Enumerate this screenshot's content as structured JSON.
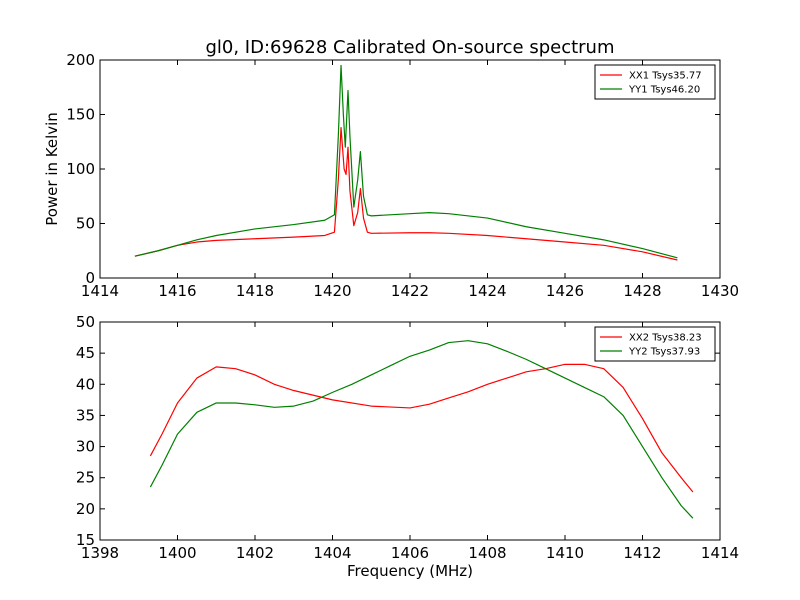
{
  "chart_data": [
    {
      "type": "line",
      "title": "gl0, ID:69628 Calibrated On-source spectrum",
      "xlabel": "",
      "ylabel": "Power in Kelvin",
      "xlim": [
        1414,
        1430
      ],
      "ylim": [
        0,
        200
      ],
      "xticks": [
        "1414",
        "1416",
        "1418",
        "1420",
        "1422",
        "1424",
        "1426",
        "1428",
        "1430"
      ],
      "yticks": [
        "0",
        "50",
        "100",
        "150",
        "200"
      ],
      "legend_position": "top-right",
      "series": [
        {
          "name": "XX1 Tsys35.77",
          "color": "#ff0000",
          "x": [
            1414.9,
            1415.5,
            1416.0,
            1416.5,
            1417.0,
            1418.0,
            1419.0,
            1419.8,
            1420.05,
            1420.15,
            1420.22,
            1420.3,
            1420.35,
            1420.4,
            1420.45,
            1420.55,
            1420.65,
            1420.72,
            1420.8,
            1420.9,
            1421.0,
            1422.0,
            1422.5,
            1423.0,
            1424.0,
            1425.0,
            1426.0,
            1427.0,
            1428.0,
            1428.9
          ],
          "y": [
            20,
            25,
            30,
            33,
            34.5,
            36,
            37.5,
            39,
            42,
            90,
            138,
            100,
            95,
            120,
            80,
            48,
            60,
            82,
            55,
            42,
            41,
            41.5,
            41.5,
            41,
            39,
            36,
            33,
            30,
            24,
            16.5
          ]
        },
        {
          "name": "YY1 Tsys46.20",
          "color": "#008000",
          "x": [
            1414.9,
            1415.5,
            1416.0,
            1416.5,
            1417.0,
            1418.0,
            1419.0,
            1419.8,
            1420.05,
            1420.15,
            1420.22,
            1420.28,
            1420.33,
            1420.4,
            1420.45,
            1420.55,
            1420.65,
            1420.72,
            1420.8,
            1420.9,
            1421.0,
            1422.0,
            1422.5,
            1423.0,
            1424.0,
            1425.0,
            1426.0,
            1427.0,
            1428.0,
            1428.9
          ],
          "y": [
            20,
            25,
            30,
            35,
            39,
            45,
            49,
            53,
            58,
            130,
            195,
            150,
            120,
            172,
            130,
            65,
            90,
            116,
            75,
            58,
            57,
            59,
            60,
            59,
            55,
            47,
            41,
            35,
            27,
            18.5
          ]
        }
      ]
    },
    {
      "type": "line",
      "title": "",
      "xlabel": "Frequency (MHz)",
      "ylabel": "",
      "xlim": [
        1398,
        1414
      ],
      "ylim": [
        15,
        50
      ],
      "xticks": [
        "1398",
        "1400",
        "1402",
        "1404",
        "1406",
        "1408",
        "1410",
        "1412",
        "1414"
      ],
      "yticks": [
        "15",
        "20",
        "25",
        "30",
        "35",
        "40",
        "45",
        "50"
      ],
      "legend_position": "top-right",
      "series": [
        {
          "name": "XX2 Tsys38.23",
          "color": "#ff0000",
          "x": [
            1399.3,
            1399.6,
            1400.0,
            1400.5,
            1401.0,
            1401.5,
            1402.0,
            1402.5,
            1403.0,
            1404.0,
            1405.0,
            1406.0,
            1406.5,
            1407.0,
            1407.5,
            1408.0,
            1408.5,
            1409.0,
            1409.5,
            1410.0,
            1410.5,
            1411.0,
            1411.5,
            1412.0,
            1412.5,
            1413.0,
            1413.3
          ],
          "y": [
            28.5,
            32,
            37,
            41,
            42.8,
            42.5,
            41.5,
            40,
            39,
            37.5,
            36.5,
            36.2,
            36.8,
            37.8,
            38.8,
            40,
            41,
            42,
            42.5,
            43.2,
            43.2,
            42.5,
            39.5,
            34.5,
            29,
            25,
            22.7
          ]
        },
        {
          "name": "YY2 Tsys37.93",
          "color": "#008000",
          "x": [
            1399.3,
            1399.6,
            1400.0,
            1400.5,
            1401.0,
            1401.5,
            1402.0,
            1402.5,
            1403.0,
            1403.5,
            1404.0,
            1404.5,
            1405.0,
            1405.5,
            1406.0,
            1406.5,
            1407.0,
            1407.5,
            1408.0,
            1408.5,
            1409.0,
            1409.5,
            1410.0,
            1410.5,
            1411.0,
            1411.5,
            1412.0,
            1412.5,
            1413.0,
            1413.3
          ],
          "y": [
            23.5,
            27,
            32,
            35.5,
            37,
            37,
            36.7,
            36.3,
            36.5,
            37.3,
            38.7,
            40,
            41.5,
            43,
            44.5,
            45.5,
            46.7,
            47,
            46.5,
            45.3,
            44,
            42.5,
            41,
            39.5,
            38,
            35,
            30,
            25,
            20.5,
            18.5
          ]
        }
      ]
    }
  ]
}
